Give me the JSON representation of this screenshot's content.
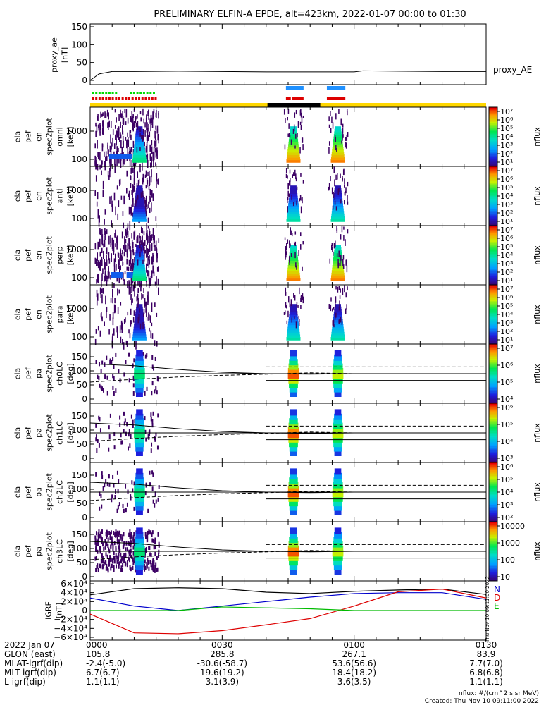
{
  "title": "PRELIMINARY ELFIN-A EPDE, alt=423km, 2022-01-07 00:00 to 01:30",
  "proxy_panel": {
    "ylabel_lines": [
      "proxy_ae",
      "[nT]"
    ],
    "yticks": [
      "150",
      "100",
      "50",
      "0"
    ],
    "legend": "proxy_AE"
  },
  "spec_panels": [
    {
      "ylabel_lines": [
        "ela",
        "pef",
        "en",
        "spec2plot",
        "omni",
        "[keV]"
      ],
      "yticks": [
        "1000",
        "100"
      ],
      "cbar_ticks": [
        "10⁷",
        "10⁶",
        "10⁵",
        "10⁴",
        "10³",
        "10²",
        "10¹"
      ]
    },
    {
      "ylabel_lines": [
        "ela",
        "pef",
        "en",
        "spec2plot",
        "anti",
        "[keV]"
      ],
      "yticks": [
        "1000",
        "100"
      ],
      "cbar_ticks": [
        "10⁷",
        "10⁶",
        "10⁵",
        "10⁴",
        "10³",
        "10²",
        "10¹"
      ]
    },
    {
      "ylabel_lines": [
        "ela",
        "pef",
        "en",
        "spec2plot",
        "perp",
        "[keV]"
      ],
      "yticks": [
        "1000",
        "100"
      ],
      "cbar_ticks": [
        "10⁷",
        "10⁶",
        "10⁵",
        "10⁴",
        "10³",
        "10²",
        "10¹"
      ]
    },
    {
      "ylabel_lines": [
        "ela",
        "pef",
        "en",
        "spec2plot",
        "para",
        "[keV]"
      ],
      "yticks": [
        "1000",
        "100"
      ],
      "cbar_ticks": [
        "10⁷",
        "10⁶",
        "10⁵",
        "10⁴",
        "10³",
        "10²",
        "10¹"
      ]
    }
  ],
  "pa_panels": [
    {
      "ylabel_lines": [
        "ela",
        "pef",
        "pa",
        "spec2plot",
        "ch0LC",
        "[deg]"
      ],
      "yticks": [
        "150",
        "100",
        "50",
        "0"
      ],
      "cbar_ticks": [
        "10⁷",
        "10⁶",
        "10⁵",
        "10⁴"
      ]
    },
    {
      "ylabel_lines": [
        "ela",
        "pef",
        "pa",
        "spec2plot",
        "ch1LC",
        "[deg]"
      ],
      "yticks": [
        "150",
        "100",
        "50",
        "0"
      ],
      "cbar_ticks": [
        "10⁶",
        "10⁵",
        "10⁴",
        "10³"
      ]
    },
    {
      "ylabel_lines": [
        "ela",
        "pef",
        "pa",
        "spec2plot",
        "ch2LC",
        "[deg]"
      ],
      "yticks": [
        "150",
        "100",
        "50",
        "0"
      ],
      "cbar_ticks": [
        "10⁶",
        "10⁵",
        "10⁴",
        "10³",
        "10²"
      ]
    },
    {
      "ylabel_lines": [
        "ela",
        "pef",
        "pa",
        "spec2plot",
        "ch3LC",
        "[deg]"
      ],
      "yticks": [
        "150",
        "100",
        "50",
        "0"
      ],
      "cbar_ticks": [
        "10000",
        "1000",
        "100",
        "10"
      ]
    }
  ],
  "cbar_label": "nflux",
  "igrf_panel": {
    "ylabel_lines": [
      "IGRF",
      "[nT]"
    ],
    "yticks": [
      "6×10⁴",
      "4×10⁴",
      "2×10⁴",
      "0",
      "−2×10⁴",
      "−4×10⁴",
      "−6×10⁴"
    ],
    "legend": [
      "N",
      "D",
      "E"
    ],
    "side_stamp": "Thu Nov 10 09:11:00 2022"
  },
  "colors": {
    "N": "#0000cc",
    "D": "#dd0000",
    "E": "#00bb00",
    "bar_yellow": "#ffd700",
    "bar_black": "#000000",
    "mark_blue": "#1e90ff",
    "mark_red": "#dd0000",
    "mark_green": "#00dd00"
  },
  "chart_data": {
    "type": "heatmap",
    "x_range": [
      "00:00",
      "01:30"
    ],
    "proxy_ae": {
      "ylim": [
        0,
        150
      ],
      "x_min": [
        0,
        2,
        5,
        10,
        20,
        30,
        40,
        50,
        60,
        62,
        70,
        80,
        90
      ],
      "values": [
        0,
        18,
        25,
        25,
        26,
        25,
        24,
        24,
        24,
        27,
        26,
        25,
        25
      ]
    },
    "igrf": {
      "ylim": [
        -60000,
        60000
      ],
      "x_min": [
        0,
        10,
        20,
        30,
        40,
        50,
        60,
        70,
        80,
        90
      ],
      "N": [
        28000,
        10000,
        0,
        10000,
        20000,
        30000,
        38000,
        40000,
        40000,
        25000
      ],
      "D": [
        -8000,
        -50000,
        -52000,
        -45000,
        -32000,
        -18000,
        10000,
        42000,
        48000,
        28000
      ],
      "E": [
        0,
        0,
        0,
        8000,
        6000,
        4000,
        0,
        0,
        0,
        0
      ],
      "total": [
        35000,
        49000,
        51000,
        49000,
        41000,
        38000,
        43000,
        46000,
        48000,
        36000
      ]
    },
    "time_labels": [
      {
        "label_row": "2022 Jan 07",
        "t": "0000",
        "glon": "105.8",
        "mlat": "-2.4(-5.0)",
        "mlt": "6.7(6.7)",
        "l": "1.1(1.1)"
      },
      {
        "t": "0030",
        "glon": "285.8",
        "mlat": "-30.6(-58.7)",
        "mlt": "19.6(19.2)",
        "l": "3.1(3.9)"
      },
      {
        "t": "0100",
        "glon": "267.1",
        "mlat": "53.6(56.6)",
        "mlt": "18.4(18.2)",
        "l": "3.6(3.5)"
      },
      {
        "t": "0130",
        "glon": "83.9",
        "mlat": "7.7(7.0)",
        "mlt": "6.8(6.8)",
        "l": "1.1(1.1)"
      }
    ]
  },
  "footer": {
    "row_labels": [
      "2022 Jan 07",
      "GLON (east)",
      "MLAT-igrf(dip)",
      "MLT-igrf(dip)",
      "L-igrf(dip)"
    ],
    "note_units": "nflux: #/(cm^2 s sr MeV)",
    "note_created": "Created: Thu Nov 10 09:11:00 2022"
  }
}
